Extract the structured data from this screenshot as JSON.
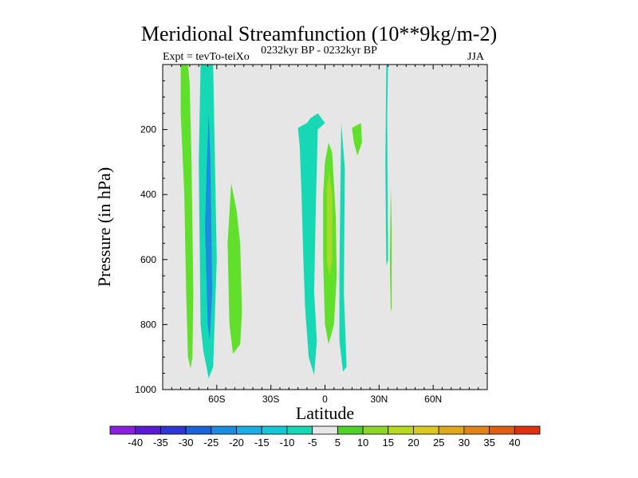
{
  "header": {
    "title": "Meridional Streamfunction (10**9kg/m-2)",
    "left_string": "Expt = tevTo-teiXo",
    "center_string": "0232kyr BP - 0232kyr BP",
    "right_string": "JJA"
  },
  "chart_data": {
    "type": "contour",
    "title": "Meridional Streamfunction (10**9kg/m-2)",
    "xlabel": "Latitude",
    "ylabel": "Pressure (in hPa)",
    "xlim": [
      -90,
      90
    ],
    "ylim": [
      1000,
      0
    ],
    "x_ticks": [
      {
        "value": -60,
        "label": "60S"
      },
      {
        "value": -30,
        "label": "30S"
      },
      {
        "value": 0,
        "label": "0"
      },
      {
        "value": 30,
        "label": "30N"
      },
      {
        "value": 60,
        "label": "60N"
      }
    ],
    "y_ticks": [
      {
        "value": 200,
        "label": "200"
      },
      {
        "value": 400,
        "label": "400"
      },
      {
        "value": 600,
        "label": "600"
      },
      {
        "value": 800,
        "label": "800"
      },
      {
        "value": 1000,
        "label": "1000"
      }
    ],
    "background_color": "#e6e6e6",
    "colorbar": {
      "labels": [
        "-40",
        "-35",
        "-30",
        "-25",
        "-20",
        "-15",
        "-10",
        "-5",
        "5",
        "10",
        "15",
        "20",
        "25",
        "30",
        "35",
        "40"
      ],
      "colors": [
        "#8c1fe0",
        "#5a1ad4",
        "#2f36d6",
        "#1c62da",
        "#1b8ce0",
        "#19aee6",
        "#15c8d8",
        "#17d8b4",
        "#e6e6e6",
        "#4fd22a",
        "#8cd628",
        "#b8d822",
        "#dcc81e",
        "#e0a81c",
        "#e08418",
        "#e05e14",
        "#e03010"
      ]
    },
    "regions": [
      {
        "level": 5,
        "color": "#60e02a",
        "points": [
          [
            -80,
            0
          ],
          [
            -76,
            0
          ],
          [
            -75,
            60
          ],
          [
            -74,
            300
          ],
          [
            -73,
            700
          ],
          [
            -73.5,
            900
          ],
          [
            -74.5,
            935
          ],
          [
            -76,
            900
          ],
          [
            -77,
            700
          ],
          [
            -78,
            400
          ],
          [
            -80,
            150
          ]
        ]
      },
      {
        "level": -5,
        "color": "#17d8b4",
        "points": [
          [
            -69,
            800
          ],
          [
            -67.5,
            880
          ],
          [
            -64.5,
            965
          ],
          [
            -62,
            930
          ],
          [
            -60,
            600
          ],
          [
            -62,
            0
          ],
          [
            -69,
            0
          ],
          [
            -70,
            300
          ]
        ]
      },
      {
        "level": -20,
        "color": "#1b8ce0",
        "points": [
          [
            -66.5,
            500
          ],
          [
            -65,
            800
          ],
          [
            -64,
            850
          ],
          [
            -62.5,
            700
          ],
          [
            -63.5,
            300
          ],
          [
            -64.5,
            150
          ],
          [
            -65.5,
            300
          ]
        ]
      },
      {
        "level": 5,
        "color": "#60e02a",
        "points": [
          [
            -52,
            365
          ],
          [
            -54,
            550
          ],
          [
            -53,
            800
          ],
          [
            -51,
            890
          ],
          [
            -47,
            860
          ],
          [
            -46,
            760
          ],
          [
            -47,
            550
          ],
          [
            -49,
            450
          ]
        ]
      },
      {
        "level": -5,
        "color": "#17d8b4",
        "points": [
          [
            -15,
            195
          ],
          [
            -10,
            180
          ],
          [
            -8,
            165
          ],
          [
            -4,
            150
          ],
          [
            0,
            180
          ],
          [
            -4,
            200
          ],
          [
            -5,
            420
          ],
          [
            -6,
            700
          ],
          [
            -4.5,
            850
          ],
          [
            -6,
            955
          ],
          [
            -9,
            900
          ],
          [
            -11,
            750
          ],
          [
            -12,
            600
          ],
          [
            -13,
            400
          ],
          [
            -14,
            250
          ]
        ]
      },
      {
        "level": 5,
        "color": "#60e02a",
        "points": [
          [
            0,
            300
          ],
          [
            2,
            240
          ],
          [
            4,
            270
          ],
          [
            6,
            470
          ],
          [
            6.5,
            650
          ],
          [
            5,
            800
          ],
          [
            2,
            860
          ],
          [
            0,
            800
          ],
          [
            -1,
            600
          ],
          [
            -1,
            400
          ]
        ]
      },
      {
        "level": 10,
        "color": "#a6da28",
        "points": [
          [
            1,
            380
          ],
          [
            2.5,
            330
          ],
          [
            4,
            400
          ],
          [
            4,
            600
          ],
          [
            2.5,
            650
          ],
          [
            1,
            600
          ]
        ]
      },
      {
        "level": -5,
        "color": "#17d8b4",
        "points": [
          [
            9,
            180
          ],
          [
            11,
            320
          ],
          [
            10.5,
            700
          ],
          [
            12,
            930
          ],
          [
            10,
            945
          ],
          [
            8,
            850
          ],
          [
            8,
            650
          ],
          [
            8.5,
            400
          ]
        ]
      },
      {
        "level": 5,
        "color": "#60e02a",
        "points": [
          [
            15,
            195
          ],
          [
            20,
            180
          ],
          [
            20.5,
            240
          ],
          [
            18,
            280
          ],
          [
            16,
            240
          ]
        ]
      },
      {
        "level": -5,
        "color": "#17d8b4",
        "points": [
          [
            34,
            0
          ],
          [
            35,
            0
          ],
          [
            34.5,
            150
          ],
          [
            35,
            600
          ],
          [
            34,
            620
          ],
          [
            33.5,
            300
          ]
        ]
      },
      {
        "level": 5,
        "color": "#60e02a",
        "points": [
          [
            36.5,
            375
          ],
          [
            37,
            500
          ],
          [
            37,
            750
          ],
          [
            36.5,
            760
          ],
          [
            36,
            600
          ]
        ]
      }
    ]
  }
}
